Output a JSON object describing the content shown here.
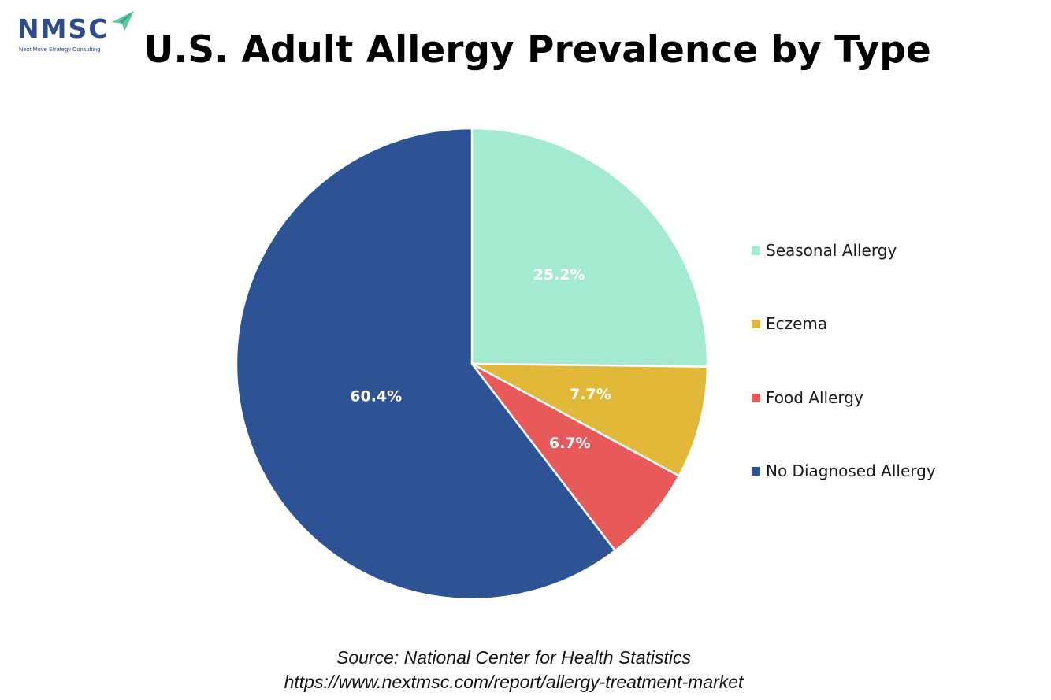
{
  "logo": {
    "mark": "NMSC",
    "tagline": "Next Move Strategy Consulting",
    "colors": {
      "text": "#2d4a8a",
      "arrow": "#5cc9a0"
    }
  },
  "chart_data": {
    "type": "pie",
    "title": "U.S. Adult Allergy Prevalence by Type",
    "categories": [
      "Seasonal Allergy",
      "Eczema",
      "Food Allergy",
      "No Diagnosed Allergy"
    ],
    "values": [
      25.2,
      7.7,
      6.7,
      60.4
    ],
    "data_labels": [
      "25.2%",
      "7.7%",
      "6.7%",
      "60.4%"
    ],
    "colors": [
      "#a3ead0",
      "#e1b837",
      "#e85a5a",
      "#2e5395"
    ],
    "start_angle": "12 o'clock",
    "direction": "clockwise",
    "legend_position": "right"
  },
  "source": {
    "line1": "Source: National Center for Health Statistics",
    "line2": "https://www.nextmsc.com/report/allergy-treatment-market"
  }
}
